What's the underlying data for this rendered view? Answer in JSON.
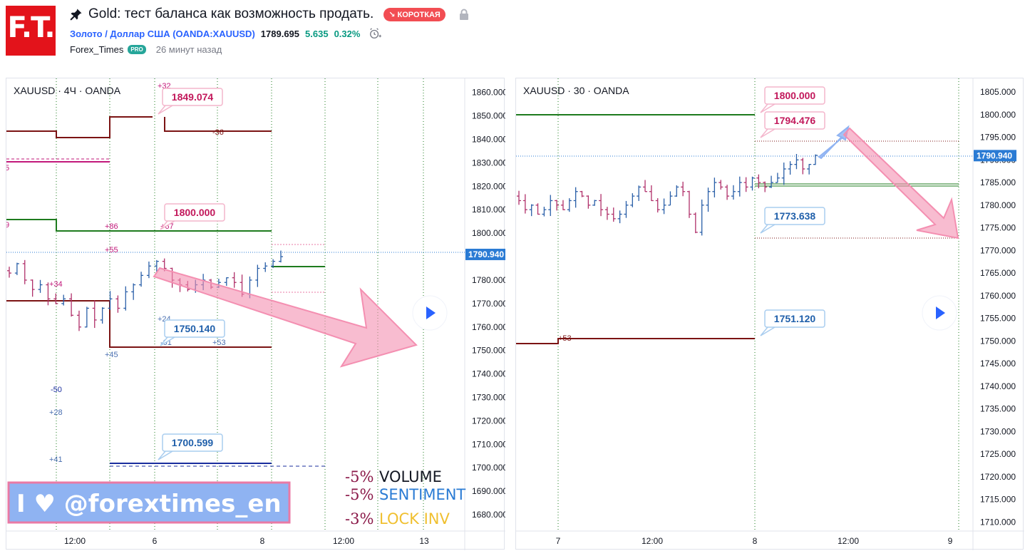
{
  "header": {
    "logo_text": "F.T.",
    "title": "Gold: тест баланса как возможность продать.",
    "badge": "↘ КОРОТКАЯ",
    "symbol_full": "Золото / Доллар США (OANDA:XAUUSD)",
    "price": "1789.695",
    "change": "5.635",
    "change_pct": "0.32%",
    "author": "Forex_Times",
    "author_badge": "PRO",
    "time_ago": "26 минут назад"
  },
  "colors": {
    "brand_red": "#e3131b",
    "short_badge": "#f24d53",
    "link_blue": "#2962ff",
    "positive": "#089981",
    "resistance_line": "#7b1313",
    "support_line": "#1e7b1e",
    "pink_arrow": "#f48fb1",
    "current_price": "#2a7bd4"
  },
  "chart_data": [
    {
      "type": "ohlc",
      "legend": "XAUUSD · 4Ч · OANDA",
      "ylim": [
        1673,
        1866
      ],
      "x_ticks": [
        "12:00",
        "6",
        "8",
        "12:00",
        "13"
      ],
      "y_ticks": [
        "1860.000",
        "1850.000",
        "1840.000",
        "1830.000",
        "1820.000",
        "1810.000",
        "1800.000",
        "1790.000",
        "1780.000",
        "1770.000",
        "1760.000",
        "1750.000",
        "1740.000",
        "1730.000",
        "1720.000",
        "1710.000",
        "1700.000",
        "1690.000",
        "1680.000"
      ],
      "current_price_label": "1790.940",
      "current_price": 1790.94,
      "level_labels": [
        {
          "text": "1849.074",
          "value": 1849.074,
          "tone": "resistance"
        },
        {
          "text": "1800.000",
          "value": 1800.0,
          "tone": "resistance"
        },
        {
          "text": "1750.140",
          "value": 1750.14,
          "tone": "support"
        },
        {
          "text": "1700.599",
          "value": 1700.599,
          "tone": "support"
        }
      ],
      "small_labels": [
        "+32",
        "-36",
        "+86",
        "+67",
        "+55",
        "+34",
        "+24",
        "-01",
        "+53",
        "+45",
        "-50",
        "+28",
        "+41",
        "5",
        "9"
      ],
      "stats": [
        {
          "pct": "-5%",
          "label": "VOLUME"
        },
        {
          "pct": "-5%",
          "label": "SENTIMENT"
        },
        {
          "pct": "-3%",
          "label": "LOCK INV"
        }
      ],
      "watermark": "I ♥ @forextimes_en",
      "closes": [
        1783,
        1787,
        1780,
        1776,
        1778,
        1772,
        1770,
        1772,
        1765,
        1760,
        1768,
        1763,
        1768,
        1772,
        1768,
        1775,
        1778,
        1782,
        1786,
        1788,
        1785,
        1780,
        1778,
        1776,
        1778,
        1780,
        1777,
        1779,
        1781,
        1779,
        1774,
        1780,
        1785,
        1786,
        1788,
        1790
      ]
    },
    {
      "type": "ohlc",
      "legend": "XAUUSD · 30 · OANDA",
      "ylim": [
        1708,
        1808
      ],
      "x_ticks": [
        "7",
        "12:00",
        "8",
        "12:00",
        "9"
      ],
      "y_ticks": [
        "1805.000",
        "1800.000",
        "1795.000",
        "1790.000",
        "1785.000",
        "1780.000",
        "1775.000",
        "1770.000",
        "1765.000",
        "1760.000",
        "1755.000",
        "1750.000",
        "1745.000",
        "1740.000",
        "1735.000",
        "1730.000",
        "1725.000",
        "1720.000",
        "1715.000",
        "1710.000"
      ],
      "current_price_label": "1790.940",
      "current_price": 1790.94,
      "level_labels": [
        {
          "text": "1800.000",
          "value": 1800.0,
          "tone": "resistance"
        },
        {
          "text": "1794.476",
          "value": 1794.476,
          "tone": "resistance"
        },
        {
          "text": "1773.638",
          "value": 1773.638,
          "tone": "support"
        },
        {
          "text": "1751.120",
          "value": 1751.12,
          "tone": "support"
        }
      ],
      "small_labels": [
        "+53"
      ],
      "closes": [
        1781,
        1779,
        1780,
        1778,
        1779,
        1781,
        1780,
        1779,
        1781,
        1783,
        1782,
        1780,
        1781,
        1779,
        1778,
        1777,
        1778,
        1780,
        1782,
        1784,
        1783,
        1781,
        1779,
        1780,
        1782,
        1784,
        1783,
        1778,
        1774,
        1780,
        1783,
        1785,
        1784,
        1782,
        1783,
        1785,
        1784,
        1786,
        1785,
        1784,
        1785,
        1786,
        1788,
        1789,
        1790,
        1788,
        1789,
        1791
      ]
    }
  ]
}
